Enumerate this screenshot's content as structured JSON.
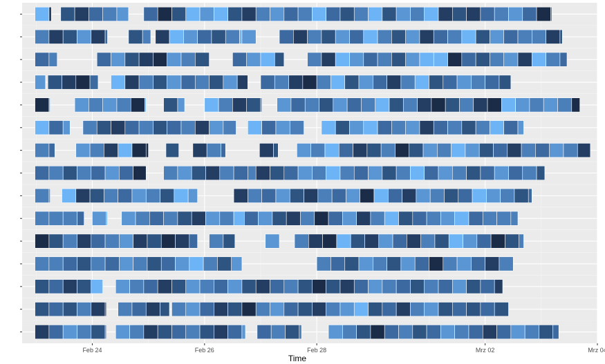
{
  "chart_data": {
    "type": "heatmap",
    "title": "",
    "xlabel": "Time",
    "ylabel": "",
    "x_ticks": [
      {
        "date": "2024-02-24",
        "label": "Feb 24"
      },
      {
        "date": "2024-02-26",
        "label": "Feb 26"
      },
      {
        "date": "2024-02-28",
        "label": "Feb 28"
      },
      {
        "date": "2024-03-02",
        "label": "Mrz 02"
      },
      {
        "date": "2024-03-04",
        "label": "Mrz 04"
      }
    ],
    "x_range": [
      "2024-02-22T18:00",
      "2024-03-04T00:00"
    ],
    "row_count": 15,
    "grid": true,
    "legend": "none",
    "palette": [
      "#1a2c48",
      "#233d63",
      "#2e5582",
      "#3c6aa0",
      "#4a7fb9",
      "#5a96d3",
      "#6cb4f5"
    ],
    "rows": [
      {
        "segments": [
          {
            "start": "2024-02-22T23:30",
            "end": "2024-02-23T06:30"
          },
          {
            "start": "2024-02-23T10:30",
            "end": "2024-02-24T15:30"
          },
          {
            "start": "2024-02-24T22:00",
            "end": "2024-03-03T04:30"
          }
        ],
        "shades": [
          6,
          1,
          2,
          1,
          3,
          4,
          5,
          3,
          0,
          2,
          6,
          5,
          6,
          2,
          1,
          4,
          5,
          3,
          4,
          6,
          3,
          2,
          4,
          6,
          2,
          5,
          4
        ]
      },
      {
        "segments": [
          {
            "start": "2024-02-22T23:30",
            "end": "2024-02-24T06:30"
          },
          {
            "start": "2024-02-24T15:30",
            "end": "2024-02-25T01:00"
          },
          {
            "start": "2024-02-25T03:00",
            "end": "2024-02-26T16:30"
          },
          {
            "start": "2024-02-26T16:00",
            "end": "2024-02-26T22:00"
          },
          {
            "start": "2024-02-27T08:00",
            "end": "2024-03-03T09:00"
          }
        ],
        "shades": [
          4,
          1,
          2,
          5,
          1,
          3,
          2,
          4,
          1,
          6,
          5,
          3,
          2,
          4,
          6,
          5,
          3,
          1,
          4,
          2,
          5,
          3,
          6,
          4,
          2,
          5,
          1,
          3,
          4,
          6,
          2,
          5,
          3,
          4
        ]
      },
      {
        "segments": [
          {
            "start": "2024-02-22T23:30",
            "end": "2024-02-23T09:00"
          },
          {
            "start": "2024-02-24T02:00",
            "end": "2024-02-26T02:00"
          },
          {
            "start": "2024-02-26T12:00",
            "end": "2024-02-27T10:00"
          },
          {
            "start": "2024-02-27T20:00",
            "end": "2024-03-03T11:00"
          }
        ],
        "shades": [
          3,
          4,
          3,
          5,
          2,
          1,
          0,
          5,
          4,
          2,
          3,
          5,
          6,
          2,
          4,
          1,
          6,
          5,
          3,
          4,
          2,
          5,
          6,
          6,
          0,
          3,
          2,
          4,
          5,
          1,
          6,
          4
        ]
      },
      {
        "segments": [
          {
            "start": "2024-02-22T23:30",
            "end": "2024-02-23T04:00"
          },
          {
            "start": "2024-02-23T05:00",
            "end": "2024-02-24T02:30"
          },
          {
            "start": "2024-02-24T08:00",
            "end": "2024-02-26T18:30"
          },
          {
            "start": "2024-02-27T00:00",
            "end": "2024-03-02T11:00"
          }
        ],
        "shades": [
          5,
          2,
          1,
          0,
          3,
          6,
          1,
          4,
          2,
          5,
          3,
          4,
          2,
          5,
          1,
          3,
          4,
          1,
          0,
          4,
          6,
          2,
          5,
          3,
          1,
          4,
          6,
          2,
          3,
          5,
          4,
          3,
          2
        ]
      },
      {
        "segments": [
          {
            "start": "2024-02-22T23:30",
            "end": "2024-02-23T06:00"
          },
          {
            "start": "2024-02-23T16:30",
            "end": "2024-02-24T23:00"
          },
          {
            "start": "2024-02-25T06:30",
            "end": "2024-02-25T15:30"
          },
          {
            "start": "2024-02-26T00:00",
            "end": "2024-02-27T00:30"
          },
          {
            "start": "2024-02-27T07:00",
            "end": "2024-03-03T16:30"
          }
        ],
        "shades": [
          0,
          6,
          5,
          4,
          5,
          4,
          0,
          6,
          2,
          5,
          6,
          4,
          1,
          2,
          3,
          5,
          3,
          4,
          2,
          5,
          3,
          4,
          6,
          2,
          4,
          1,
          0,
          2,
          4,
          1
        ]
      },
      {
        "segments": [
          {
            "start": "2024-02-22T23:30",
            "end": "2024-02-23T14:30"
          },
          {
            "start": "2024-02-23T20:00",
            "end": "2024-02-26T13:30"
          },
          {
            "start": "2024-02-26T18:30",
            "end": "2024-02-27T18:30"
          },
          {
            "start": "2024-02-28T02:00",
            "end": "2024-03-02T16:30"
          }
        ],
        "shades": [
          6,
          3,
          5,
          4,
          2,
          1,
          3,
          4,
          2,
          3,
          4,
          1,
          5,
          4,
          6,
          3,
          5,
          4,
          6,
          2,
          5,
          6,
          3,
          4,
          5,
          1,
          3,
          4,
          2,
          4
        ]
      },
      {
        "segments": [
          {
            "start": "2024-02-22T23:30",
            "end": "2024-02-23T08:00"
          },
          {
            "start": "2024-02-23T17:00",
            "end": "2024-02-25T00:00"
          },
          {
            "start": "2024-02-25T07:30",
            "end": "2024-02-25T13:00"
          },
          {
            "start": "2024-02-25T19:00",
            "end": "2024-02-26T09:00"
          },
          {
            "start": "2024-02-26T23:30",
            "end": "2024-02-27T07:30"
          },
          {
            "start": "2024-02-27T15:30",
            "end": "2024-03-03T21:00"
          }
        ],
        "shades": [
          4,
          3,
          5,
          4,
          1,
          6,
          0,
          0,
          2,
          1,
          4,
          3,
          1,
          2,
          5,
          4,
          6,
          3,
          1,
          2,
          4,
          0,
          2,
          5,
          4,
          6,
          5,
          2,
          3,
          1
        ]
      },
      {
        "segments": [
          {
            "start": "2024-02-22T23:30",
            "end": "2024-02-24T23:00"
          },
          {
            "start": "2024-02-25T06:30",
            "end": "2024-02-26T22:00"
          },
          {
            "start": "2024-02-26T22:00",
            "end": "2024-03-03T01:30"
          }
        ],
        "shades": [
          3,
          4,
          2,
          4,
          3,
          5,
          3,
          0,
          4,
          5,
          2,
          1,
          4,
          3,
          4,
          1,
          2,
          3,
          5,
          4,
          6,
          4,
          3,
          5,
          2,
          4,
          6,
          3,
          5,
          4,
          2,
          3,
          5
        ]
      },
      {
        "segments": [
          {
            "start": "2024-02-22T23:30",
            "end": "2024-02-23T06:00"
          },
          {
            "start": "2024-02-23T11:00",
            "end": "2024-02-25T21:00"
          },
          {
            "start": "2024-02-26T12:30",
            "end": "2024-03-02T20:00"
          }
        ],
        "shades": [
          4,
          4,
          6,
          1,
          2,
          4,
          3,
          5,
          4,
          2,
          6,
          5,
          1,
          4,
          3,
          5,
          2,
          1,
          4,
          3,
          5,
          0,
          6,
          3,
          1,
          5,
          4,
          2,
          3,
          6,
          5,
          4,
          2,
          3,
          4
        ]
      },
      {
        "segments": [
          {
            "start": "2024-02-22T23:30",
            "end": "2024-02-23T20:30"
          },
          {
            "start": "2024-02-24T00:00",
            "end": "2024-02-24T06:30"
          },
          {
            "start": "2024-02-24T12:30",
            "end": "2024-02-26T17:00"
          },
          {
            "start": "2024-02-26T17:00",
            "end": "2024-03-02T14:00"
          }
        ],
        "shades": [
          4,
          4,
          4,
          3,
          5,
          6,
          5,
          4,
          3,
          4,
          2,
          1,
          5,
          4,
          6,
          3,
          5,
          2,
          1,
          4,
          0,
          3,
          5,
          1,
          4,
          6,
          2,
          3,
          4,
          5,
          6,
          3
        ]
      },
      {
        "segments": [
          {
            "start": "2024-02-22T23:30",
            "end": "2024-02-25T21:00"
          },
          {
            "start": "2024-02-26T02:00",
            "end": "2024-02-26T13:00"
          },
          {
            "start": "2024-02-27T02:00",
            "end": "2024-02-27T08:00"
          },
          {
            "start": "2024-02-27T14:30",
            "end": "2024-03-02T16:30"
          }
        ],
        "shades": [
          0,
          2,
          4,
          1,
          3,
          4,
          5,
          1,
          2,
          0,
          1,
          3,
          4,
          2,
          5,
          4,
          1,
          0,
          6,
          2,
          1,
          5,
          3,
          1,
          4,
          2,
          6,
          5,
          3
        ]
      },
      {
        "segments": [
          {
            "start": "2024-02-22T23:30",
            "end": "2024-02-26T16:00"
          },
          {
            "start": "2024-02-28T00:00",
            "end": "2024-03-02T12:00"
          }
        ],
        "shades": [
          4,
          4,
          3,
          2,
          4,
          3,
          5,
          4,
          2,
          3,
          5,
          6,
          4,
          2,
          5,
          4,
          3,
          2,
          5,
          4,
          2,
          5,
          3,
          0,
          4,
          5,
          3,
          1,
          4,
          2,
          4,
          5
        ]
      },
      {
        "segments": [
          {
            "start": "2024-02-22T23:30",
            "end": "2024-02-24T04:30"
          },
          {
            "start": "2024-02-24T10:00",
            "end": "2024-03-02T07:30"
          }
        ],
        "shades": [
          2,
          3,
          1,
          2,
          6,
          5,
          4,
          3,
          1,
          2,
          5,
          4,
          3,
          5,
          2,
          1,
          3,
          4,
          2,
          0,
          2,
          1,
          3,
          5,
          4,
          3,
          2,
          4,
          3,
          5
        ]
      },
      {
        "segments": [
          {
            "start": "2024-02-22T23:30",
            "end": "2024-02-24T06:00"
          },
          {
            "start": "2024-02-24T11:00",
            "end": "2024-02-25T09:00"
          },
          {
            "start": "2024-02-25T10:00",
            "end": "2024-03-02T10:00"
          }
        ],
        "shades": [
          2,
          3,
          2,
          4,
          1,
          0,
          4,
          3,
          1,
          2,
          4,
          5,
          3,
          1,
          2,
          0,
          4,
          5,
          3,
          2,
          1,
          4,
          5,
          6,
          2,
          3,
          1,
          4,
          5,
          2,
          3
        ]
      },
      {
        "segments": [
          {
            "start": "2024-02-22T23:30",
            "end": "2024-02-24T06:00"
          },
          {
            "start": "2024-02-24T10:00",
            "end": "2024-02-26T17:30"
          },
          {
            "start": "2024-02-26T22:30",
            "end": "2024-02-27T17:30"
          },
          {
            "start": "2024-02-28T05:00",
            "end": "2024-03-03T07:30"
          }
        ],
        "shades": [
          1,
          3,
          5,
          4,
          2,
          3,
          5,
          4,
          1,
          2,
          3,
          4,
          2,
          1,
          3,
          5,
          3,
          4,
          2,
          4,
          5,
          4,
          2,
          0,
          3,
          4,
          2,
          3,
          5,
          4,
          3
        ]
      }
    ]
  }
}
